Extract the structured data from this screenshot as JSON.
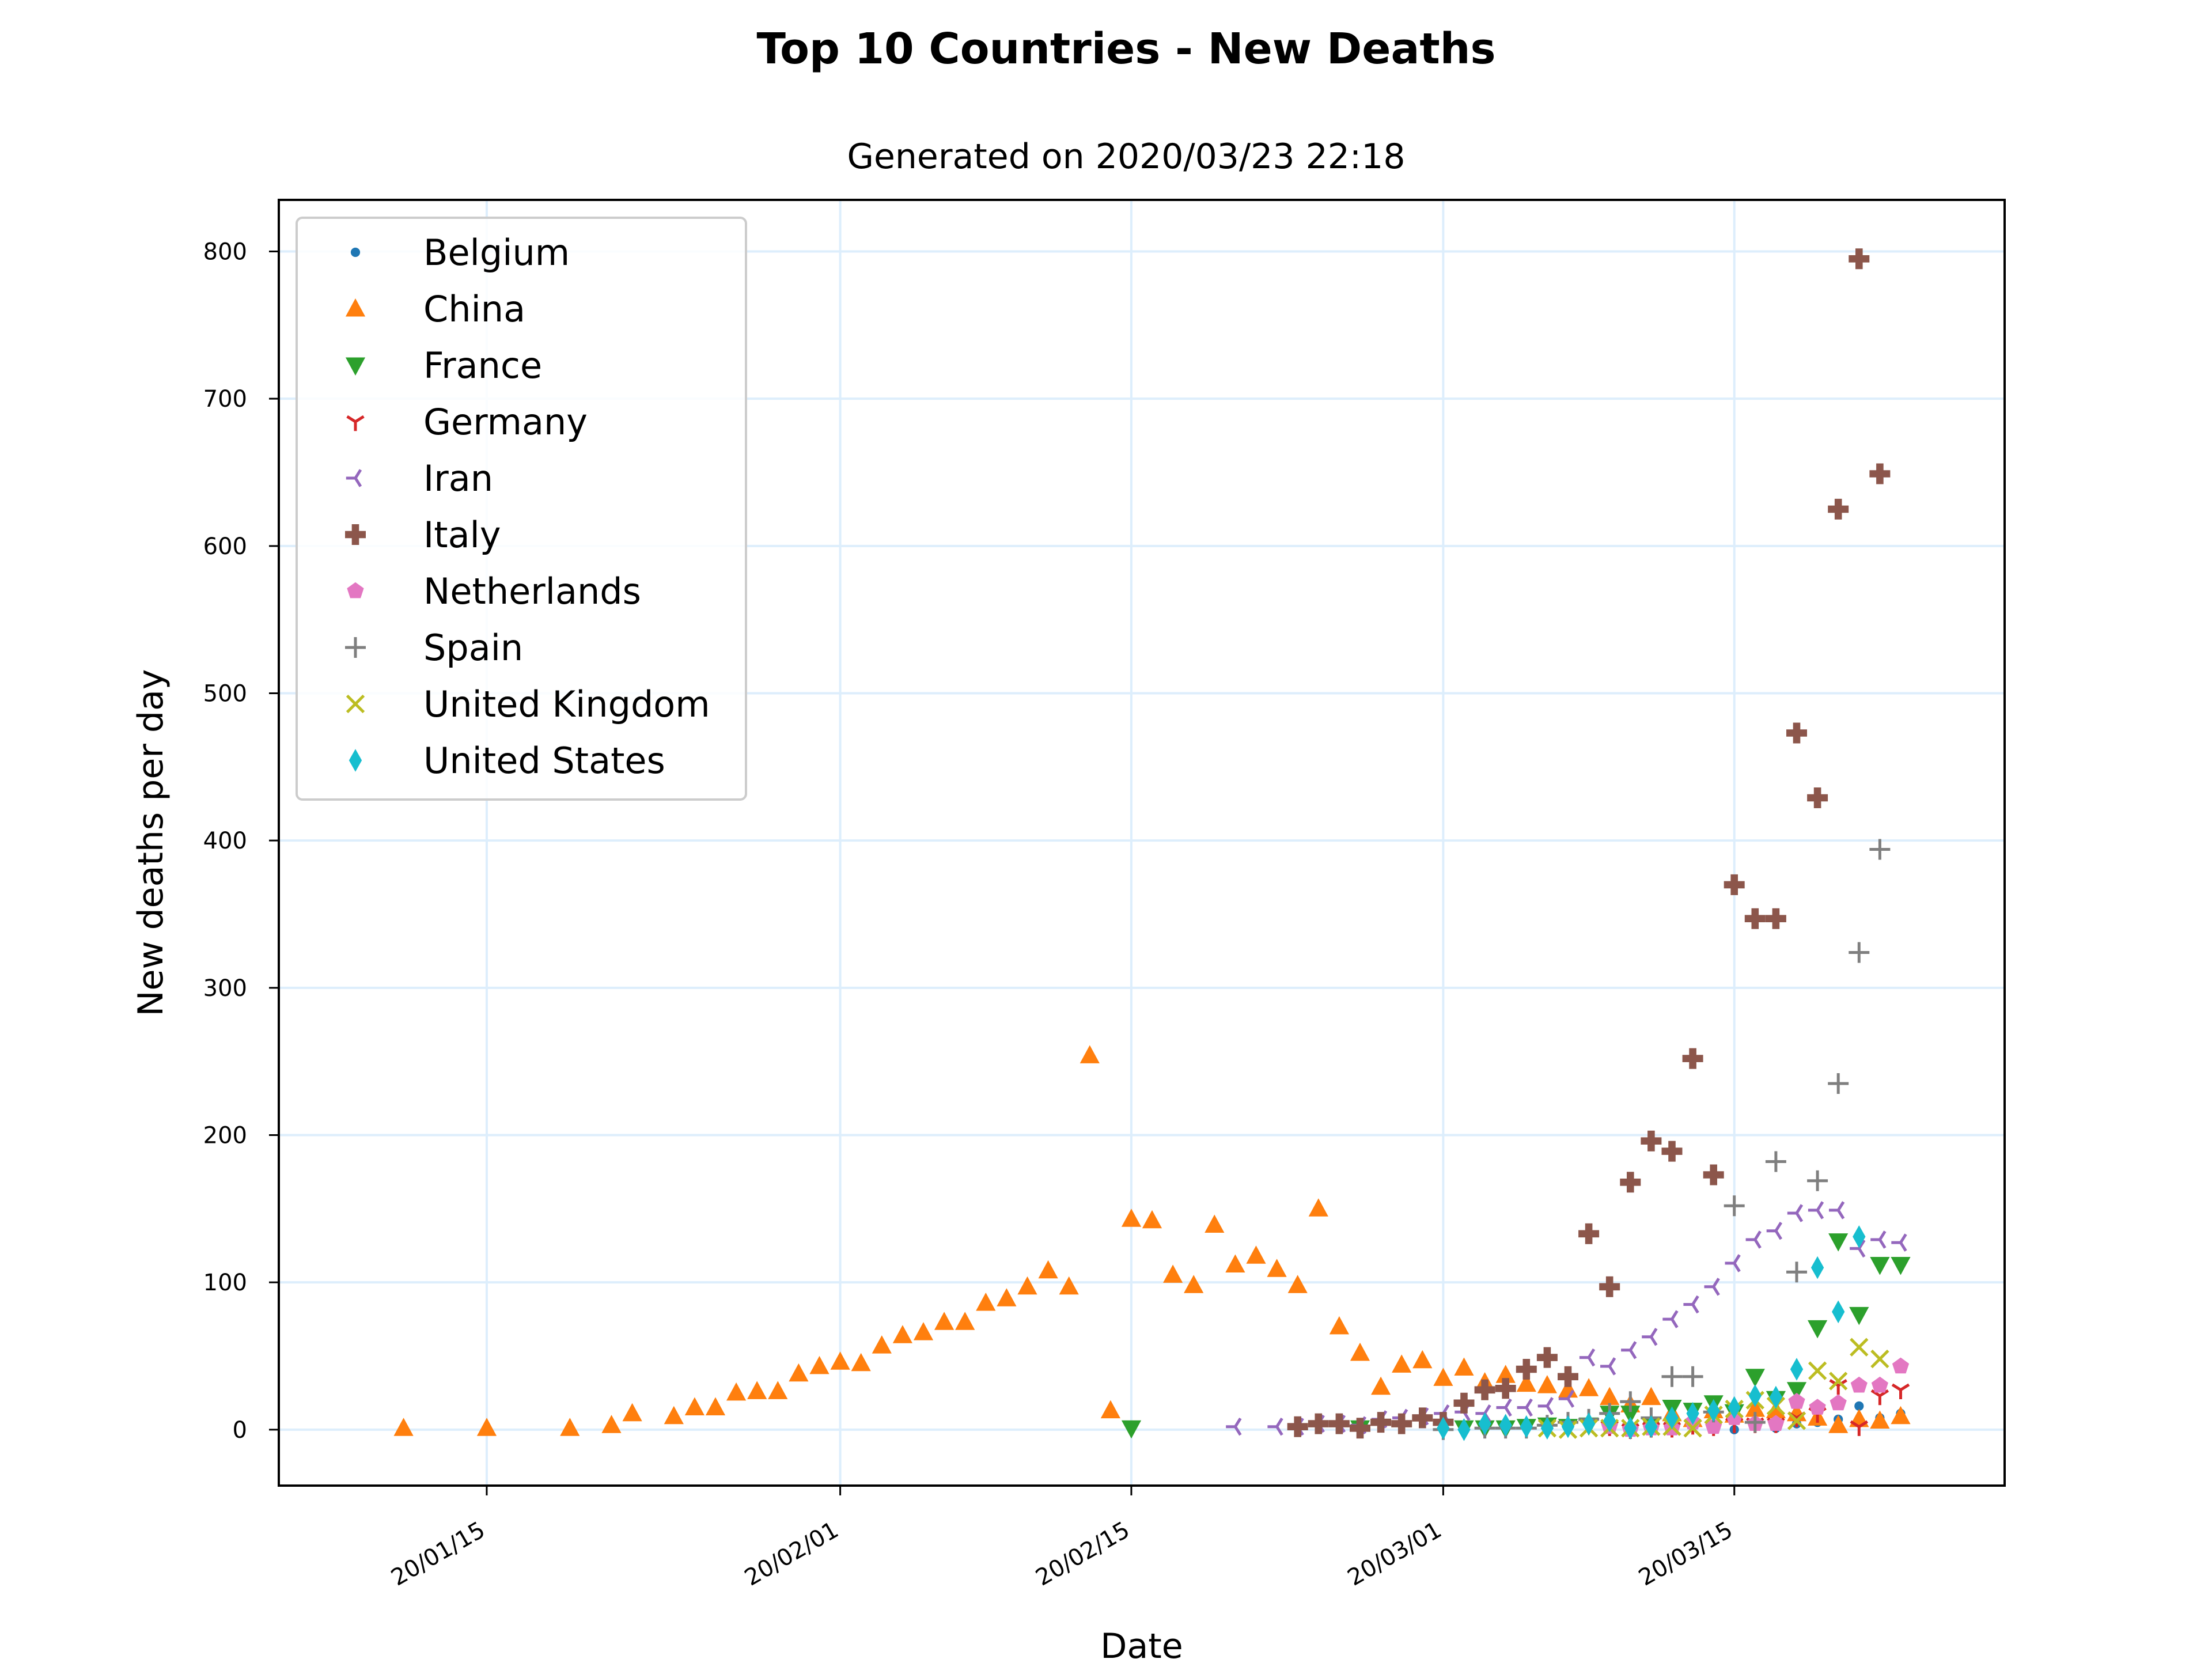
{
  "chart_data": {
    "type": "scatter",
    "title": "Top 10 Countries - New Deaths",
    "subtitle": "Generated on 2020/03/23 22:18",
    "xlabel": "Date",
    "ylabel": "New deaths per day",
    "x_axis": {
      "kind": "date",
      "min": "2020-01-05",
      "max": "2020-03-28",
      "ticks": [
        {
          "date": "2020-01-15",
          "label": "20/01/15"
        },
        {
          "date": "2020-02-01",
          "label": "20/02/01"
        },
        {
          "date": "2020-02-15",
          "label": "20/02/15"
        },
        {
          "date": "2020-03-01",
          "label": "20/03/01"
        },
        {
          "date": "2020-03-15",
          "label": "20/03/15"
        }
      ]
    },
    "y_axis": {
      "min": -38,
      "max": 835,
      "ticks": [
        0,
        100,
        200,
        300,
        400,
        500,
        600,
        700,
        800
      ]
    },
    "grid": true,
    "legend_position": "top-left",
    "series": [
      {
        "name": "Belgium",
        "color": "#1f77b4",
        "marker": "point",
        "points": [
          [
            "2020-03-09",
            0
          ],
          [
            "2020-03-10",
            0
          ],
          [
            "2020-03-11",
            3
          ],
          [
            "2020-03-12",
            0
          ],
          [
            "2020-03-13",
            2
          ],
          [
            "2020-03-14",
            1
          ],
          [
            "2020-03-15",
            0
          ],
          [
            "2020-03-16",
            5
          ],
          [
            "2020-03-17",
            1
          ],
          [
            "2020-03-18",
            4
          ],
          [
            "2020-03-19",
            5
          ],
          [
            "2020-03-20",
            7
          ],
          [
            "2020-03-21",
            16
          ],
          [
            "2020-03-22",
            8
          ],
          [
            "2020-03-23",
            11
          ]
        ]
      },
      {
        "name": "China",
        "color": "#ff7f0e",
        "marker": "triangle-up",
        "points": [
          [
            "2020-01-11",
            1
          ],
          [
            "2020-01-15",
            1
          ],
          [
            "2020-01-19",
            1
          ],
          [
            "2020-01-21",
            3
          ],
          [
            "2020-01-22",
            11
          ],
          [
            "2020-01-24",
            9
          ],
          [
            "2020-01-25",
            15
          ],
          [
            "2020-01-26",
            15
          ],
          [
            "2020-01-27",
            25
          ],
          [
            "2020-01-28",
            26
          ],
          [
            "2020-01-29",
            26
          ],
          [
            "2020-01-30",
            38
          ],
          [
            "2020-01-31",
            43
          ],
          [
            "2020-02-01",
            46
          ],
          [
            "2020-02-02",
            45
          ],
          [
            "2020-02-03",
            57
          ],
          [
            "2020-02-04",
            64
          ],
          [
            "2020-02-05",
            66
          ],
          [
            "2020-02-06",
            73
          ],
          [
            "2020-02-07",
            73
          ],
          [
            "2020-02-08",
            86
          ],
          [
            "2020-02-09",
            89
          ],
          [
            "2020-02-10",
            97
          ],
          [
            "2020-02-11",
            108
          ],
          [
            "2020-02-12",
            97
          ],
          [
            "2020-02-13",
            254
          ],
          [
            "2020-02-14",
            13
          ],
          [
            "2020-02-15",
            143
          ],
          [
            "2020-02-16",
            142
          ],
          [
            "2020-02-17",
            105
          ],
          [
            "2020-02-18",
            98
          ],
          [
            "2020-02-19",
            139
          ],
          [
            "2020-02-20",
            112
          ],
          [
            "2020-02-21",
            118
          ],
          [
            "2020-02-22",
            109
          ],
          [
            "2020-02-23",
            98
          ],
          [
            "2020-02-24",
            150
          ],
          [
            "2020-02-25",
            70
          ],
          [
            "2020-02-26",
            52
          ],
          [
            "2020-02-27",
            29
          ],
          [
            "2020-02-28",
            44
          ],
          [
            "2020-02-29",
            47
          ],
          [
            "2020-03-01",
            35
          ],
          [
            "2020-03-02",
            42
          ],
          [
            "2020-03-03",
            32
          ],
          [
            "2020-03-04",
            37
          ],
          [
            "2020-03-05",
            31
          ],
          [
            "2020-03-06",
            30
          ],
          [
            "2020-03-07",
            27
          ],
          [
            "2020-03-08",
            28
          ],
          [
            "2020-03-09",
            22
          ],
          [
            "2020-03-10",
            17
          ],
          [
            "2020-03-11",
            22
          ],
          [
            "2020-03-12",
            11
          ],
          [
            "2020-03-13",
            7
          ],
          [
            "2020-03-14",
            13
          ],
          [
            "2020-03-15",
            10
          ],
          [
            "2020-03-16",
            14
          ],
          [
            "2020-03-17",
            13
          ],
          [
            "2020-03-18",
            11
          ],
          [
            "2020-03-19",
            8
          ],
          [
            "2020-03-20",
            3
          ],
          [
            "2020-03-21",
            7
          ],
          [
            "2020-03-22",
            6
          ],
          [
            "2020-03-23",
            9
          ]
        ]
      },
      {
        "name": "France",
        "color": "#2ca02c",
        "marker": "triangle-down",
        "points": [
          [
            "2020-02-15",
            1
          ],
          [
            "2020-02-26",
            1
          ],
          [
            "2020-03-02",
            1
          ],
          [
            "2020-03-03",
            1
          ],
          [
            "2020-03-04",
            1
          ],
          [
            "2020-03-05",
            2
          ],
          [
            "2020-03-06",
            3
          ],
          [
            "2020-03-07",
            2
          ],
          [
            "2020-03-08",
            3
          ],
          [
            "2020-03-09",
            11
          ],
          [
            "2020-03-10",
            11
          ],
          [
            "2020-03-11",
            3
          ],
          [
            "2020-03-12",
            15
          ],
          [
            "2020-03-13",
            13
          ],
          [
            "2020-03-14",
            18
          ],
          [
            "2020-03-15",
            12
          ],
          [
            "2020-03-16",
            36
          ],
          [
            "2020-03-17",
            21
          ],
          [
            "2020-03-18",
            27
          ],
          [
            "2020-03-19",
            69
          ],
          [
            "2020-03-20",
            128
          ],
          [
            "2020-03-21",
            78
          ],
          [
            "2020-03-22",
            112
          ],
          [
            "2020-03-23",
            112
          ]
        ]
      },
      {
        "name": "Germany",
        "color": "#d62728",
        "marker": "tri-down",
        "points": [
          [
            "2020-03-09",
            2
          ],
          [
            "2020-03-10",
            0
          ],
          [
            "2020-03-11",
            1
          ],
          [
            "2020-03-12",
            1
          ],
          [
            "2020-03-13",
            3
          ],
          [
            "2020-03-14",
            2
          ],
          [
            "2020-03-15",
            4
          ],
          [
            "2020-03-16",
            4
          ],
          [
            "2020-03-17",
            4
          ],
          [
            "2020-03-18",
            8
          ],
          [
            "2020-03-19",
            11
          ],
          [
            "2020-03-20",
            30
          ],
          [
            "2020-03-21",
            2
          ],
          [
            "2020-03-22",
            23
          ],
          [
            "2020-03-23",
            27
          ]
        ]
      },
      {
        "name": "Iran",
        "color": "#9467bd",
        "marker": "tri-left",
        "points": [
          [
            "2020-02-20",
            2
          ],
          [
            "2020-02-22",
            2
          ],
          [
            "2020-02-23",
            2
          ],
          [
            "2020-02-24",
            4
          ],
          [
            "2020-02-25",
            4
          ],
          [
            "2020-02-26",
            3
          ],
          [
            "2020-02-27",
            7
          ],
          [
            "2020-02-28",
            8
          ],
          [
            "2020-02-29",
            9
          ],
          [
            "2020-03-01",
            11
          ],
          [
            "2020-03-02",
            12
          ],
          [
            "2020-03-03",
            11
          ],
          [
            "2020-03-04",
            15
          ],
          [
            "2020-03-05",
            15
          ],
          [
            "2020-03-06",
            16
          ],
          [
            "2020-03-07",
            21
          ],
          [
            "2020-03-08",
            49
          ],
          [
            "2020-03-09",
            43
          ],
          [
            "2020-03-10",
            54
          ],
          [
            "2020-03-11",
            63
          ],
          [
            "2020-03-12",
            75
          ],
          [
            "2020-03-13",
            85
          ],
          [
            "2020-03-14",
            97
          ],
          [
            "2020-03-15",
            113
          ],
          [
            "2020-03-16",
            129
          ],
          [
            "2020-03-17",
            135
          ],
          [
            "2020-03-18",
            147
          ],
          [
            "2020-03-19",
            149
          ],
          [
            "2020-03-20",
            149
          ],
          [
            "2020-03-21",
            123
          ],
          [
            "2020-03-22",
            129
          ],
          [
            "2020-03-23",
            127
          ]
        ]
      },
      {
        "name": "Italy",
        "color": "#8c564b",
        "marker": "plus-filled",
        "points": [
          [
            "2020-02-23",
            2
          ],
          [
            "2020-02-24",
            4
          ],
          [
            "2020-02-25",
            4
          ],
          [
            "2020-02-26",
            1
          ],
          [
            "2020-02-27",
            5
          ],
          [
            "2020-02-28",
            4
          ],
          [
            "2020-02-29",
            8
          ],
          [
            "2020-03-01",
            5
          ],
          [
            "2020-03-02",
            18
          ],
          [
            "2020-03-03",
            27
          ],
          [
            "2020-03-04",
            28
          ],
          [
            "2020-03-05",
            41
          ],
          [
            "2020-03-06",
            49
          ],
          [
            "2020-03-07",
            36
          ],
          [
            "2020-03-08",
            133
          ],
          [
            "2020-03-09",
            97
          ],
          [
            "2020-03-10",
            168
          ],
          [
            "2020-03-11",
            196
          ],
          [
            "2020-03-12",
            189
          ],
          [
            "2020-03-13",
            252
          ],
          [
            "2020-03-14",
            173
          ],
          [
            "2020-03-15",
            370
          ],
          [
            "2020-03-16",
            347
          ],
          [
            "2020-03-17",
            347
          ],
          [
            "2020-03-18",
            473
          ],
          [
            "2020-03-19",
            429
          ],
          [
            "2020-03-20",
            625
          ],
          [
            "2020-03-21",
            795
          ],
          [
            "2020-03-22",
            649
          ]
        ]
      },
      {
        "name": "Netherlands",
        "color": "#e377c2",
        "marker": "pentagon",
        "points": [
          [
            "2020-03-09",
            2
          ],
          [
            "2020-03-10",
            0
          ],
          [
            "2020-03-11",
            1
          ],
          [
            "2020-03-12",
            1
          ],
          [
            "2020-03-13",
            5
          ],
          [
            "2020-03-14",
            2
          ],
          [
            "2020-03-15",
            8
          ],
          [
            "2020-03-16",
            4
          ],
          [
            "2020-03-17",
            4
          ],
          [
            "2020-03-18",
            19
          ],
          [
            "2020-03-19",
            15
          ],
          [
            "2020-03-20",
            18
          ],
          [
            "2020-03-21",
            30
          ],
          [
            "2020-03-22",
            30
          ],
          [
            "2020-03-23",
            43
          ]
        ]
      },
      {
        "name": "Spain",
        "color": "#7f7f7f",
        "marker": "plus",
        "points": [
          [
            "2020-03-01",
            0
          ],
          [
            "2020-03-03",
            1
          ],
          [
            "2020-03-04",
            1
          ],
          [
            "2020-03-05",
            1
          ],
          [
            "2020-03-06",
            3
          ],
          [
            "2020-03-07",
            5
          ],
          [
            "2020-03-08",
            7
          ],
          [
            "2020-03-09",
            11
          ],
          [
            "2020-03-10",
            19
          ],
          [
            "2020-03-11",
            8
          ],
          [
            "2020-03-12",
            36
          ],
          [
            "2020-03-13",
            36
          ],
          [
            "2020-03-14",
            12
          ],
          [
            "2020-03-15",
            152
          ],
          [
            "2020-03-16",
            5
          ],
          [
            "2020-03-17",
            182
          ],
          [
            "2020-03-18",
            107
          ],
          [
            "2020-03-19",
            169
          ],
          [
            "2020-03-20",
            235
          ],
          [
            "2020-03-21",
            324
          ],
          [
            "2020-03-22",
            394
          ]
        ]
      },
      {
        "name": "United Kingdom",
        "color": "#bcbd22",
        "marker": "x",
        "points": [
          [
            "2020-03-06",
            1
          ],
          [
            "2020-03-07",
            0
          ],
          [
            "2020-03-08",
            1
          ],
          [
            "2020-03-09",
            1
          ],
          [
            "2020-03-10",
            1
          ],
          [
            "2020-03-11",
            2
          ],
          [
            "2020-03-12",
            2
          ],
          [
            "2020-03-13",
            1
          ],
          [
            "2020-03-14",
            10
          ],
          [
            "2020-03-15",
            14
          ],
          [
            "2020-03-16",
            20
          ],
          [
            "2020-03-17",
            16
          ],
          [
            "2020-03-18",
            6
          ],
          [
            "2020-03-19",
            40
          ],
          [
            "2020-03-20",
            33
          ],
          [
            "2020-03-21",
            56
          ],
          [
            "2020-03-22",
            48
          ]
        ]
      },
      {
        "name": "United States",
        "color": "#17becf",
        "marker": "thin-diamond",
        "points": [
          [
            "2020-03-01",
            1
          ],
          [
            "2020-03-02",
            0
          ],
          [
            "2020-03-03",
            4
          ],
          [
            "2020-03-04",
            3
          ],
          [
            "2020-03-05",
            2
          ],
          [
            "2020-03-06",
            1
          ],
          [
            "2020-03-07",
            2
          ],
          [
            "2020-03-08",
            4
          ],
          [
            "2020-03-09",
            6
          ],
          [
            "2020-03-10",
            1
          ],
          [
            "2020-03-11",
            2
          ],
          [
            "2020-03-12",
            8
          ],
          [
            "2020-03-13",
            11
          ],
          [
            "2020-03-14",
            13
          ],
          [
            "2020-03-15",
            15
          ],
          [
            "2020-03-16",
            23
          ],
          [
            "2020-03-17",
            22
          ],
          [
            "2020-03-18",
            41
          ],
          [
            "2020-03-19",
            110
          ],
          [
            "2020-03-20",
            80
          ],
          [
            "2020-03-21",
            131
          ]
        ]
      }
    ]
  }
}
